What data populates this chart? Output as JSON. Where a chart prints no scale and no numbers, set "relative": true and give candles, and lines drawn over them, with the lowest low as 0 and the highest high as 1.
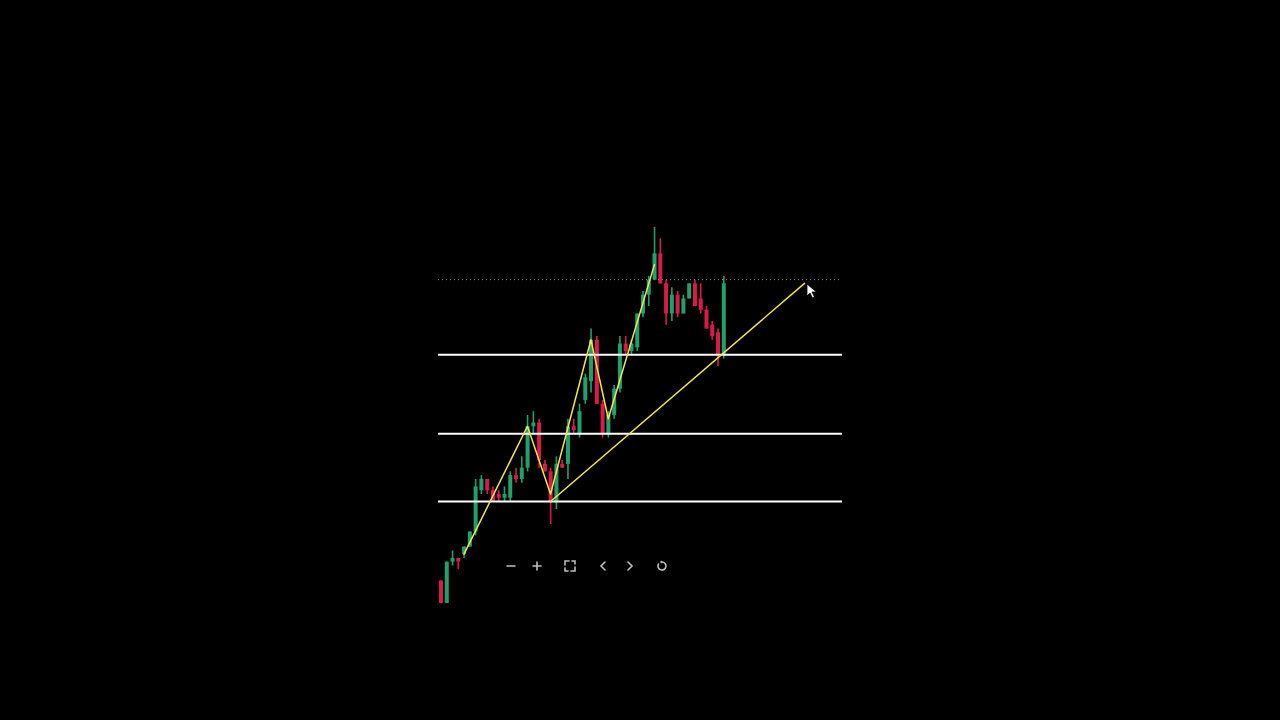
{
  "chart_data": {
    "type": "candlestick",
    "relative": true,
    "categories": [
      null,
      null,
      null,
      null,
      null,
      null,
      null,
      null,
      null,
      null,
      null,
      null,
      null,
      null,
      null,
      null,
      null,
      null,
      null,
      null,
      null,
      null,
      null,
      null,
      null,
      null,
      null,
      null,
      null,
      null,
      null,
      null,
      null,
      null,
      null,
      null,
      null,
      null,
      null,
      null,
      null,
      null,
      null,
      null,
      null,
      null,
      null,
      null,
      null,
      null,
      null,
      null,
      null,
      null,
      null,
      null,
      null,
      null,
      null,
      null,
      null,
      null,
      null,
      null,
      null,
      null,
      null,
      null,
      null,
      null
    ],
    "ohlc": [
      [
        0.06,
        0.06,
        0,
        0
      ],
      [
        0,
        0.11,
        0,
        0.11
      ],
      [
        0.11,
        0.14,
        0.1,
        0.12
      ],
      [
        0.12,
        0.12,
        0.09,
        0.11
      ],
      [
        0.13,
        0.15,
        0.12,
        0.15
      ],
      [
        0.15,
        0.19,
        0.15,
        0.19
      ],
      [
        0.19,
        0.33,
        0.18,
        0.31
      ],
      [
        0.3,
        0.34,
        0.29,
        0.33
      ],
      [
        0.33,
        0.33,
        0.29,
        0.3
      ],
      [
        0.3,
        0.31,
        0.27,
        0.27
      ],
      [
        0.29,
        0.3,
        0.27,
        0.28
      ],
      [
        0.28,
        0.31,
        0.27,
        0.29
      ],
      [
        0.28,
        0.35,
        0.27,
        0.34
      ],
      [
        0.34,
        0.36,
        0.32,
        0.33
      ],
      [
        0.33,
        0.39,
        0.32,
        0.36
      ],
      [
        0.36,
        0.5,
        0.35,
        0.47
      ],
      [
        0.47,
        0.51,
        0.45,
        0.48
      ],
      [
        0.48,
        0.49,
        0.36,
        0.38
      ],
      [
        0.37,
        0.38,
        0.35,
        0.35
      ],
      [
        0.35,
        0.36,
        0.21,
        0.27
      ],
      [
        0.27,
        0.39,
        0.25,
        0.37
      ],
      [
        0.37,
        0.38,
        0.36,
        0.36
      ],
      [
        0.37,
        0.49,
        0.33,
        0.47
      ],
      [
        0.47,
        0.49,
        0.45,
        0.46
      ],
      [
        0.45,
        0.53,
        0.44,
        0.51
      ],
      [
        0.54,
        0.61,
        0.53,
        0.6
      ],
      [
        0.59,
        0.73,
        0.56,
        0.7
      ],
      [
        0.7,
        0.71,
        0.53,
        0.53
      ],
      [
        0.53,
        0.54,
        0.44,
        0.45
      ],
      [
        0.45,
        0.51,
        0.44,
        0.5
      ],
      [
        0.5,
        0.58,
        0.49,
        0.57
      ],
      [
        0.57,
        0.71,
        0.56,
        0.69
      ],
      [
        0.69,
        0.71,
        0.66,
        0.67
      ],
      [
        0.67,
        0.7,
        0.66,
        0.69
      ],
      [
        0.68,
        0.77,
        0.67,
        0.77
      ],
      [
        0.77,
        0.83,
        0.76,
        0.82
      ],
      [
        0.82,
        0.87,
        0.79,
        0.86
      ],
      [
        0.86,
        1,
        0.86,
        0.93
      ],
      [
        0.93,
        0.97,
        0.85,
        0.85
      ],
      [
        0.85,
        0.86,
        0.74,
        0.77
      ],
      [
        0.77,
        0.84,
        0.75,
        0.82
      ],
      [
        0.82,
        0.83,
        0.76,
        0.77
      ],
      [
        0.77,
        0.82,
        0.77,
        0.81
      ],
      [
        0.81,
        0.85,
        0.81,
        0.85
      ],
      [
        0.85,
        0.86,
        0.79,
        0.79
      ],
      [
        0.81,
        0.85,
        0.77,
        0.78
      ],
      [
        0.78,
        0.79,
        0.73,
        0.73
      ],
      [
        0.74,
        0.75,
        0.7,
        0.71
      ],
      [
        0.72,
        0.73,
        0.63,
        0.66
      ],
      [
        0.66,
        0.87,
        0.65,
        0.85
      ],
      null,
      null,
      null,
      null,
      null,
      null,
      null,
      null,
      null,
      null,
      null,
      null,
      null,
      null,
      null,
      null,
      null,
      null,
      null,
      null
    ],
    "colors": [
      "#d81b47",
      "#22a06b",
      "#22a06b",
      "#d81b47",
      "#22a06b",
      "#22a06b",
      "#22a06b",
      "#22a06b",
      "#d81b47",
      "#d81b47",
      "#d81b47",
      "#22a06b",
      "#22a06b",
      "#d81b47",
      "#22a06b",
      "#22a06b",
      "#22a06b",
      "#d81b47",
      "#d81b47",
      "#d81b47",
      "#22a06b",
      "#d81b47",
      "#22a06b",
      "#d81b47",
      "#22a06b",
      "#22a06b",
      "#22a06b",
      "#d81b47",
      "#d81b47",
      "#22a06b",
      "#22a06b",
      "#22a06b",
      "#d81b47",
      "#22a06b",
      "#22a06b",
      "#22a06b",
      "#22a06b",
      "#22a06b",
      "#d81b47",
      "#d81b47",
      "#22a06b",
      "#d81b47",
      "#22a06b",
      "#22a06b",
      "#d81b47",
      "#d81b47",
      "#d81b47",
      "#d81b47",
      "#d81b47",
      "#22a06b",
      null,
      null,
      null,
      null,
      null,
      null,
      null,
      null,
      null,
      null,
      null,
      null,
      null,
      null,
      null,
      null,
      null,
      null,
      null,
      null
    ],
    "series": [
      {
        "type": "line",
        "color": "#f2e64a",
        "values": [
          null,
          null,
          null,
          null,
          0.13,
          null,
          null,
          null,
          null,
          null,
          null,
          null,
          null,
          null,
          null,
          0.47,
          null,
          null,
          null,
          0.29,
          null,
          null,
          null,
          null,
          null,
          null,
          0.7,
          null,
          null,
          0.49,
          null,
          null,
          null,
          null,
          null,
          null,
          null,
          0.9,
          null,
          null,
          null,
          null,
          null,
          null,
          null,
          null,
          null,
          null,
          null,
          null,
          null,
          null,
          null,
          null,
          null,
          null,
          null,
          null,
          null,
          null,
          null,
          null,
          null,
          null,
          null,
          null,
          null,
          null,
          null,
          null
        ]
      },
      {
        "type": "line",
        "color": "#f2e64a",
        "values": [
          null,
          null,
          null,
          null,
          null,
          null,
          null,
          null,
          null,
          null,
          null,
          null,
          null,
          null,
          null,
          null,
          null,
          null,
          null,
          0.27,
          null,
          null,
          null,
          null,
          null,
          null,
          null,
          null,
          null,
          null,
          null,
          null,
          null,
          null,
          null,
          null,
          null,
          null,
          null,
          null,
          null,
          null,
          null,
          null,
          null,
          null,
          null,
          null,
          null,
          null,
          null,
          null,
          null,
          null,
          null,
          null,
          null,
          null,
          null,
          null,
          null,
          null,
          null,
          0.85,
          null,
          null,
          null,
          null,
          null,
          null
        ]
      }
    ],
    "ref_lines": [
      {
        "axis": "y",
        "value": 0.66,
        "color": "#ffffff",
        "line_style": "solid"
      },
      {
        "axis": "y",
        "value": 0.45,
        "color": "#ffffff",
        "line_style": "solid"
      },
      {
        "axis": "y",
        "value": 0.27,
        "color": "#ffffff",
        "line_style": "solid"
      },
      {
        "axis": "y",
        "value": 0.86,
        "color": "#8a8a8a",
        "line_style": "dotted"
      }
    ]
  }
}
